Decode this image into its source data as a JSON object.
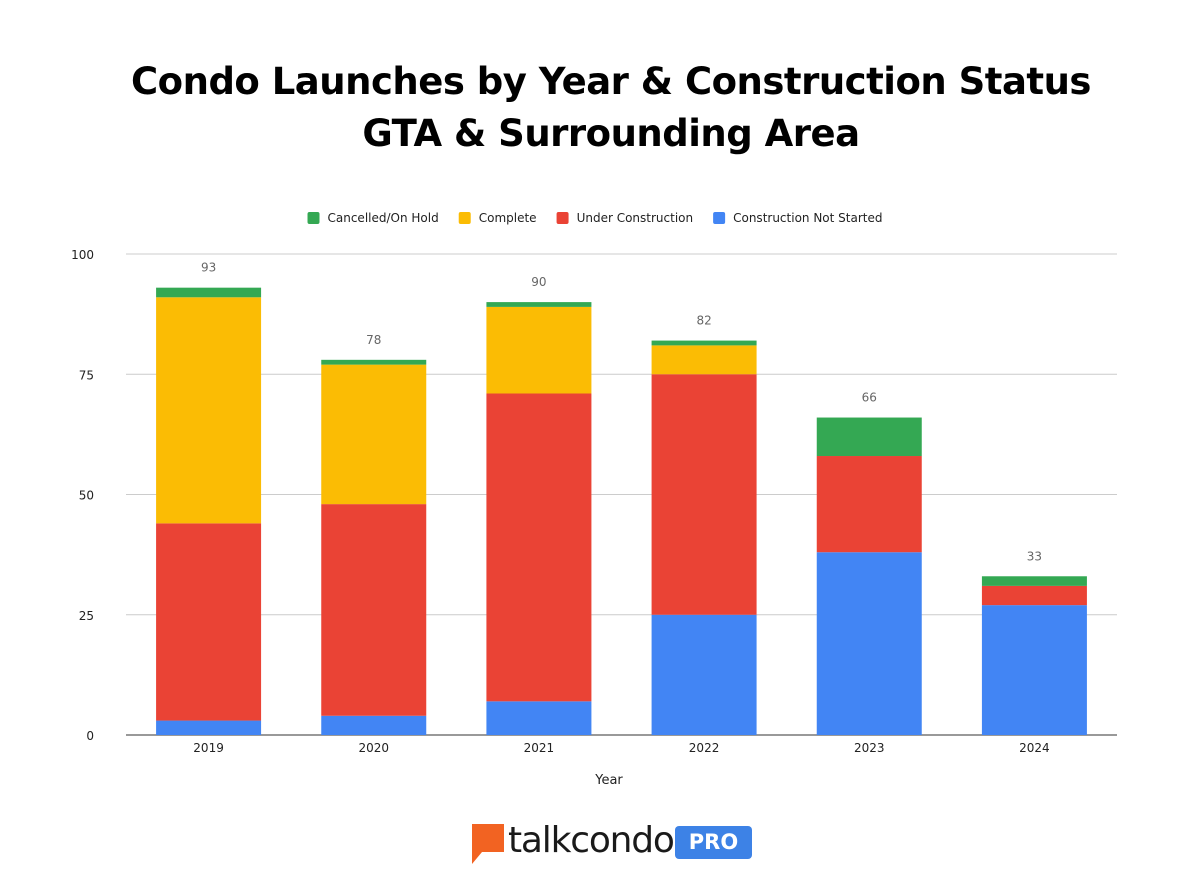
{
  "chart_data": {
    "type": "bar",
    "stacked": true,
    "title": "Condo Launches by Year & Construction Status",
    "subtitle": "GTA & Surrounding Area",
    "xlabel": "Year",
    "ylabel": "",
    "ylim": [
      0,
      100
    ],
    "yticks": [
      0,
      25,
      50,
      75,
      100
    ],
    "grid": true,
    "legend_position": "top",
    "categories": [
      "2019",
      "2020",
      "2021",
      "2022",
      "2023",
      "2024"
    ],
    "series": [
      {
        "name": "Construction Not Started",
        "color": "#4285f4",
        "values": [
          3,
          4,
          7,
          25,
          38,
          27
        ]
      },
      {
        "name": "Under Construction",
        "color": "#ea4335",
        "values": [
          41,
          44,
          64,
          50,
          20,
          4
        ]
      },
      {
        "name": "Complete",
        "color": "#fbbc04",
        "values": [
          47,
          29,
          18,
          6,
          0,
          0
        ]
      },
      {
        "name": "Cancelled/On Hold",
        "color": "#34a853",
        "values": [
          2,
          1,
          1,
          1,
          8,
          2
        ]
      }
    ],
    "legend_order": [
      "Cancelled/On Hold",
      "Complete",
      "Under Construction",
      "Construction Not Started"
    ],
    "totals": [
      "93",
      "78",
      "90",
      "82",
      "66",
      "33"
    ]
  },
  "branding": {
    "logo_text": "talkcondo",
    "badge_text": "PRO",
    "logo_color": "#f26322",
    "badge_color": "#3d82e6"
  }
}
